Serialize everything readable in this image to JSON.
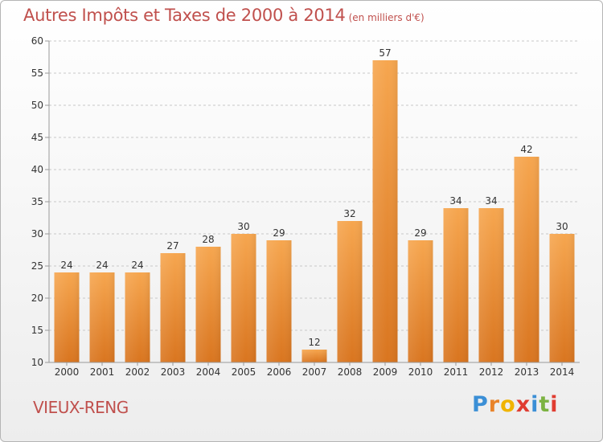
{
  "title": "Autres Impôts et Taxes de 2000 à 2014",
  "subtitle": "(en milliers d'€)",
  "commune": "VIEUX-RENG",
  "logo": {
    "text": "Proxiti",
    "letters": [
      "P",
      "r",
      "o",
      "x",
      "i",
      "t",
      "i"
    ],
    "colors": [
      "#3b8fd6",
      "#e8832a",
      "#f0b400",
      "#e03c31",
      "#3b8fd6",
      "#7cb342",
      "#e03c31"
    ]
  },
  "colors": {
    "accent": "#c0504d",
    "bar_top": "#f6a64f",
    "bar_bottom": "#d9751f"
  },
  "chart_data": {
    "type": "bar",
    "categories": [
      "2000",
      "2001",
      "2002",
      "2003",
      "2004",
      "2005",
      "2006",
      "2007",
      "2008",
      "2009",
      "2010",
      "2011",
      "2012",
      "2013",
      "2014"
    ],
    "values": [
      24,
      24,
      24,
      27,
      28,
      30,
      29,
      12,
      32,
      57,
      29,
      34,
      34,
      42,
      30
    ],
    "data_labels": [
      "24",
      "24",
      "24",
      "27",
      "28",
      "30",
      "29",
      "12",
      "32",
      "57",
      "29",
      "34",
      "34",
      "42",
      "30"
    ],
    "yticks": [
      "10",
      "15",
      "20",
      "25",
      "30",
      "35",
      "40",
      "45",
      "50",
      "55",
      "60"
    ],
    "ylim": [
      10,
      60
    ],
    "grid": "horizontal dashed",
    "title": "Autres Impôts et Taxes de 2000 à 2014",
    "xlabel": "",
    "ylabel": ""
  }
}
